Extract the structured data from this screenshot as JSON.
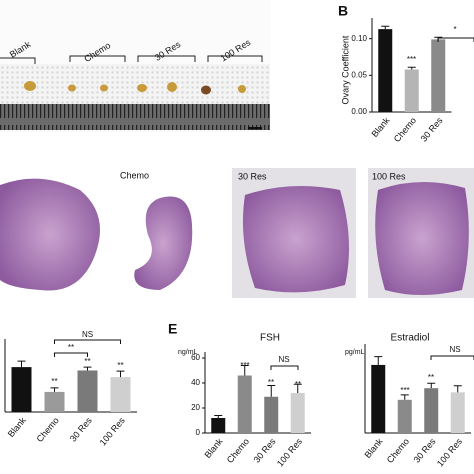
{
  "photo_labels": [
    "Blank",
    "Chemo",
    "30 Res",
    "100 Res"
  ],
  "histology_labels": [
    "Chemo",
    "30 Res",
    "100 Res"
  ],
  "chart_data": [
    {
      "type": "bar",
      "panel": "B",
      "ylabel": "Ovary Coefficient",
      "categories": [
        "Blank",
        "Chemo",
        "30 Res"
      ],
      "values": [
        0.113,
        0.058,
        0.099
      ],
      "errors": [
        0.004,
        0.003,
        0.003
      ],
      "colors": [
        "#111111",
        "#b5b5b5",
        "#8a8a8a"
      ],
      "ylim": [
        0,
        0.12
      ],
      "yticks": [
        {
          "value": 0,
          "label": "0.00"
        },
        {
          "value": 0.05,
          "label": "0.05"
        },
        {
          "value": 0.1,
          "label": "0.10"
        }
      ],
      "annotations": [
        "***",
        "*"
      ]
    },
    {
      "type": "bar",
      "categories": [
        "Blank",
        "Chemo",
        "30 Res",
        "100 Res"
      ],
      "values": [
        0.67,
        0.3,
        0.62,
        0.52
      ],
      "errors": [
        0.09,
        0.06,
        0.05,
        0.09
      ],
      "colors": [
        "#111111",
        "#9a9a9a",
        "#7a7a7a",
        "#cfcfcf"
      ],
      "ylim": [
        0,
        1
      ],
      "annotations": [
        "**",
        "**",
        "**",
        "**",
        "NS"
      ]
    },
    {
      "type": "bar",
      "panel": "E",
      "title": "FSH",
      "unit": "ng/mL",
      "categories": [
        "Blank",
        "Chemo",
        "30 Res",
        "100 Res"
      ],
      "values": [
        12,
        46,
        29,
        32
      ],
      "errors": [
        2,
        8,
        9,
        7
      ],
      "colors": [
        "#111111",
        "#8a8a8a",
        "#7a7a7a",
        "#cfcfcf"
      ],
      "ylim": [
        0,
        60
      ],
      "yticks": [
        0,
        20,
        40,
        60
      ],
      "annotations": [
        "***",
        "**",
        "**",
        "NS"
      ]
    },
    {
      "type": "bar",
      "title": "Estradiol",
      "unit": "pg/mL",
      "categories": [
        "Blank",
        "Chemo",
        "30 Res",
        "100 Res"
      ],
      "values": [
        82,
        40,
        54,
        49
      ],
      "errors": [
        10,
        6,
        6,
        8
      ],
      "colors": [
        "#111111",
        "#8a8a8a",
        "#7a7a7a",
        "#cfcfcf"
      ],
      "ylim": [
        0,
        100
      ],
      "annotations": [
        "***",
        "**",
        "NS"
      ]
    }
  ]
}
